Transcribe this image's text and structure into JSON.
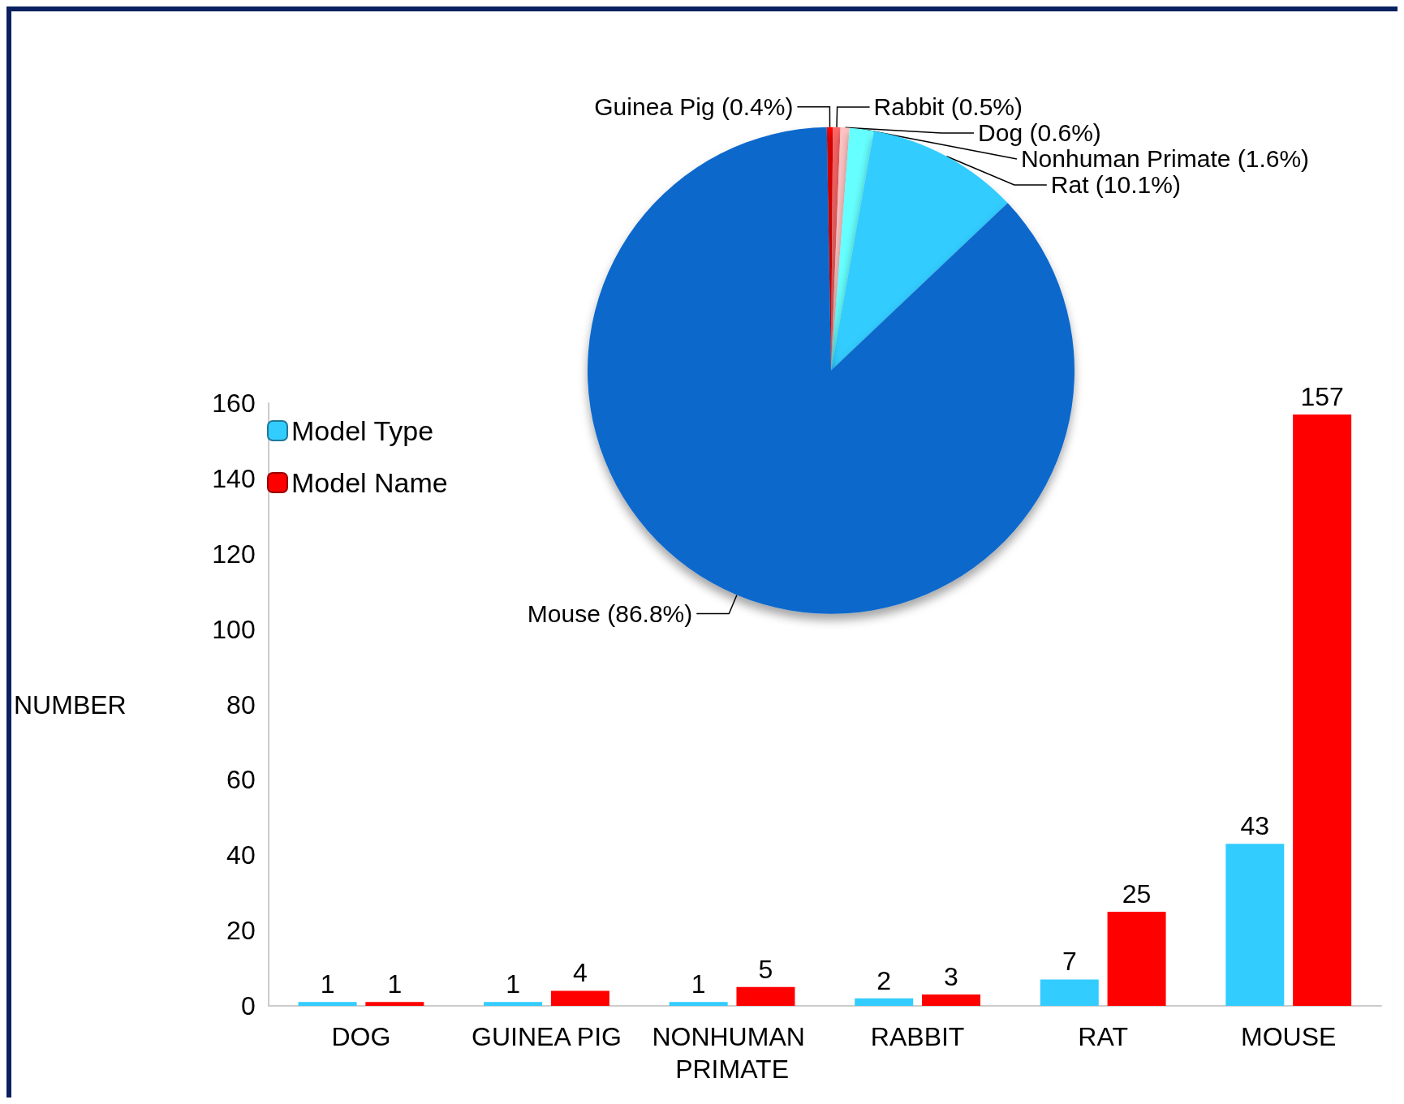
{
  "chart_data": [
    {
      "type": "pie",
      "categories": [
        "Guinea Pig (0.4%)",
        "Rabbit (0.5%)",
        "Dog (0.6%)",
        "Nonhuman Primate (1.6%)",
        "Rat (10.1%)",
        "Mouse (86.8%)"
      ],
      "values": [
        0.4,
        0.5,
        0.6,
        1.6,
        10.1,
        86.8
      ],
      "colors": [
        "#ff0000",
        "#ff6666",
        "#ffc4c4",
        "#66ffff",
        "#33ccff",
        "#0a68cc"
      ]
    },
    {
      "type": "bar",
      "categories": [
        "DOG",
        "GUINEA PIG",
        "NONHUMAN PRIMATE",
        "RABBIT",
        "RAT",
        "MOUSE"
      ],
      "ylabel": "NUMBER",
      "ylim": [
        0,
        160
      ],
      "yticks": [
        0,
        20,
        40,
        60,
        80,
        100,
        120,
        140,
        160
      ],
      "grid": false,
      "legend": "top left",
      "data_labels": true,
      "series": [
        {
          "name": "Model Type",
          "color": "#33ccff",
          "values": [
            1,
            1,
            1,
            2,
            7,
            43
          ]
        },
        {
          "name": "Model Name",
          "color": "#ff0000",
          "values": [
            1,
            4,
            5,
            3,
            25,
            157
          ]
        }
      ]
    }
  ]
}
